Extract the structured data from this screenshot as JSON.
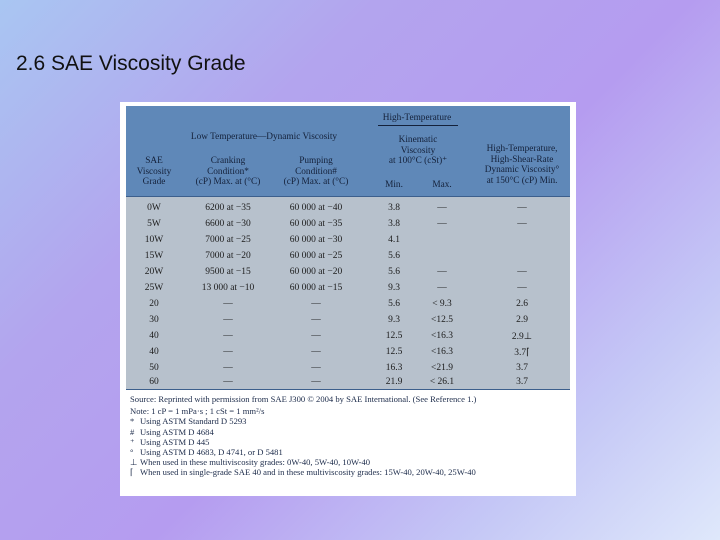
{
  "slide": {
    "title": "2.6 SAE Viscosity Grade"
  },
  "table": {
    "headers": {
      "low_temp_group": "Low Temperature—Dynamic Viscosity",
      "high_temp_group": "High-Temperature",
      "grade": [
        "SAE",
        "Viscosity",
        "Grade"
      ],
      "cranking": [
        "Cranking",
        "Condition*",
        "(cP) Max. at (°C)"
      ],
      "pumping": [
        "Pumping",
        "Condition#",
        "(cP) Max. at (°C)"
      ],
      "kinematic": [
        "Kinematic",
        "Viscosity",
        "at 100°C (cSt)⁺"
      ],
      "min": "Min.",
      "max": "Max.",
      "hths": [
        "High-Temperature,",
        "High-Shear-Rate",
        "Dynamic Viscosity°",
        "at 150°C (cP) Min."
      ]
    },
    "rows": [
      {
        "grade": "0W",
        "cranking": "6200 at −35",
        "pumping": "60 000 at −40",
        "min": "3.8",
        "max": "—",
        "hths": "—"
      },
      {
        "grade": "5W",
        "cranking": "6600 at −30",
        "pumping": "60 000 at −35",
        "min": "3.8",
        "max": "—",
        "hths": "—"
      },
      {
        "grade": "10W",
        "cranking": "7000 at −25",
        "pumping": "60 000 at −30",
        "min": "4.1",
        "max": "",
        "hths": ""
      },
      {
        "grade": "15W",
        "cranking": "7000 at −20",
        "pumping": "60 000 at −25",
        "min": "5.6",
        "max": "",
        "hths": ""
      },
      {
        "grade": "20W",
        "cranking": "9500 at −15",
        "pumping": "60 000 at −20",
        "min": "5.6",
        "max": "—",
        "hths": "—"
      },
      {
        "grade": "25W",
        "cranking": "13 000 at −10",
        "pumping": "60 000 at −15",
        "min": "9.3",
        "max": "—",
        "hths": "—"
      },
      {
        "grade": "20",
        "cranking": "—",
        "pumping": "—",
        "min": "5.6",
        "max": "< 9.3",
        "hths": "2.6"
      },
      {
        "grade": "30",
        "cranking": "—",
        "pumping": "—",
        "min": "9.3",
        "max": "<12.5",
        "hths": "2.9"
      },
      {
        "grade": "40",
        "cranking": "—",
        "pumping": "—",
        "min": "12.5",
        "max": "<16.3",
        "hths": "2.9⊥"
      },
      {
        "grade": "40",
        "cranking": "—",
        "pumping": "—",
        "min": "12.5",
        "max": "<16.3",
        "hths": "3.7⌈"
      },
      {
        "grade": "50",
        "cranking": "—",
        "pumping": "—",
        "min": "16.3",
        "max": "<21.9",
        "hths": "3.7"
      },
      {
        "grade": "60",
        "cranking": "—",
        "pumping": "—",
        "min": "21.9",
        "max": "< 26.1",
        "hths": "3.7"
      }
    ]
  },
  "notes": {
    "source": "Source: Reprinted with permission from SAE J300 © 2004 by SAE International. (See Reference 1.)",
    "note": "Note: 1 cP = 1 mPa·s ; 1 cSt = 1 mm²/s",
    "items": [
      {
        "mark": "*",
        "text": "Using ASTM Standard D 5293"
      },
      {
        "mark": "#",
        "text": "Using ASTM D 4684"
      },
      {
        "mark": "⁺",
        "text": "Using ASTM D 445"
      },
      {
        "mark": "°",
        "text": "Using ASTM D 4683, D 4741, or D 5481"
      },
      {
        "mark": "⊥",
        "text": "When used in these multiviscosity grades: 0W-40, 5W-40, 10W-40"
      },
      {
        "mark": "⌈",
        "text": "When used in single-grade SAE 40 and in these multiviscosity grades: 15W-40, 20W-40, 25W-40"
      }
    ]
  }
}
